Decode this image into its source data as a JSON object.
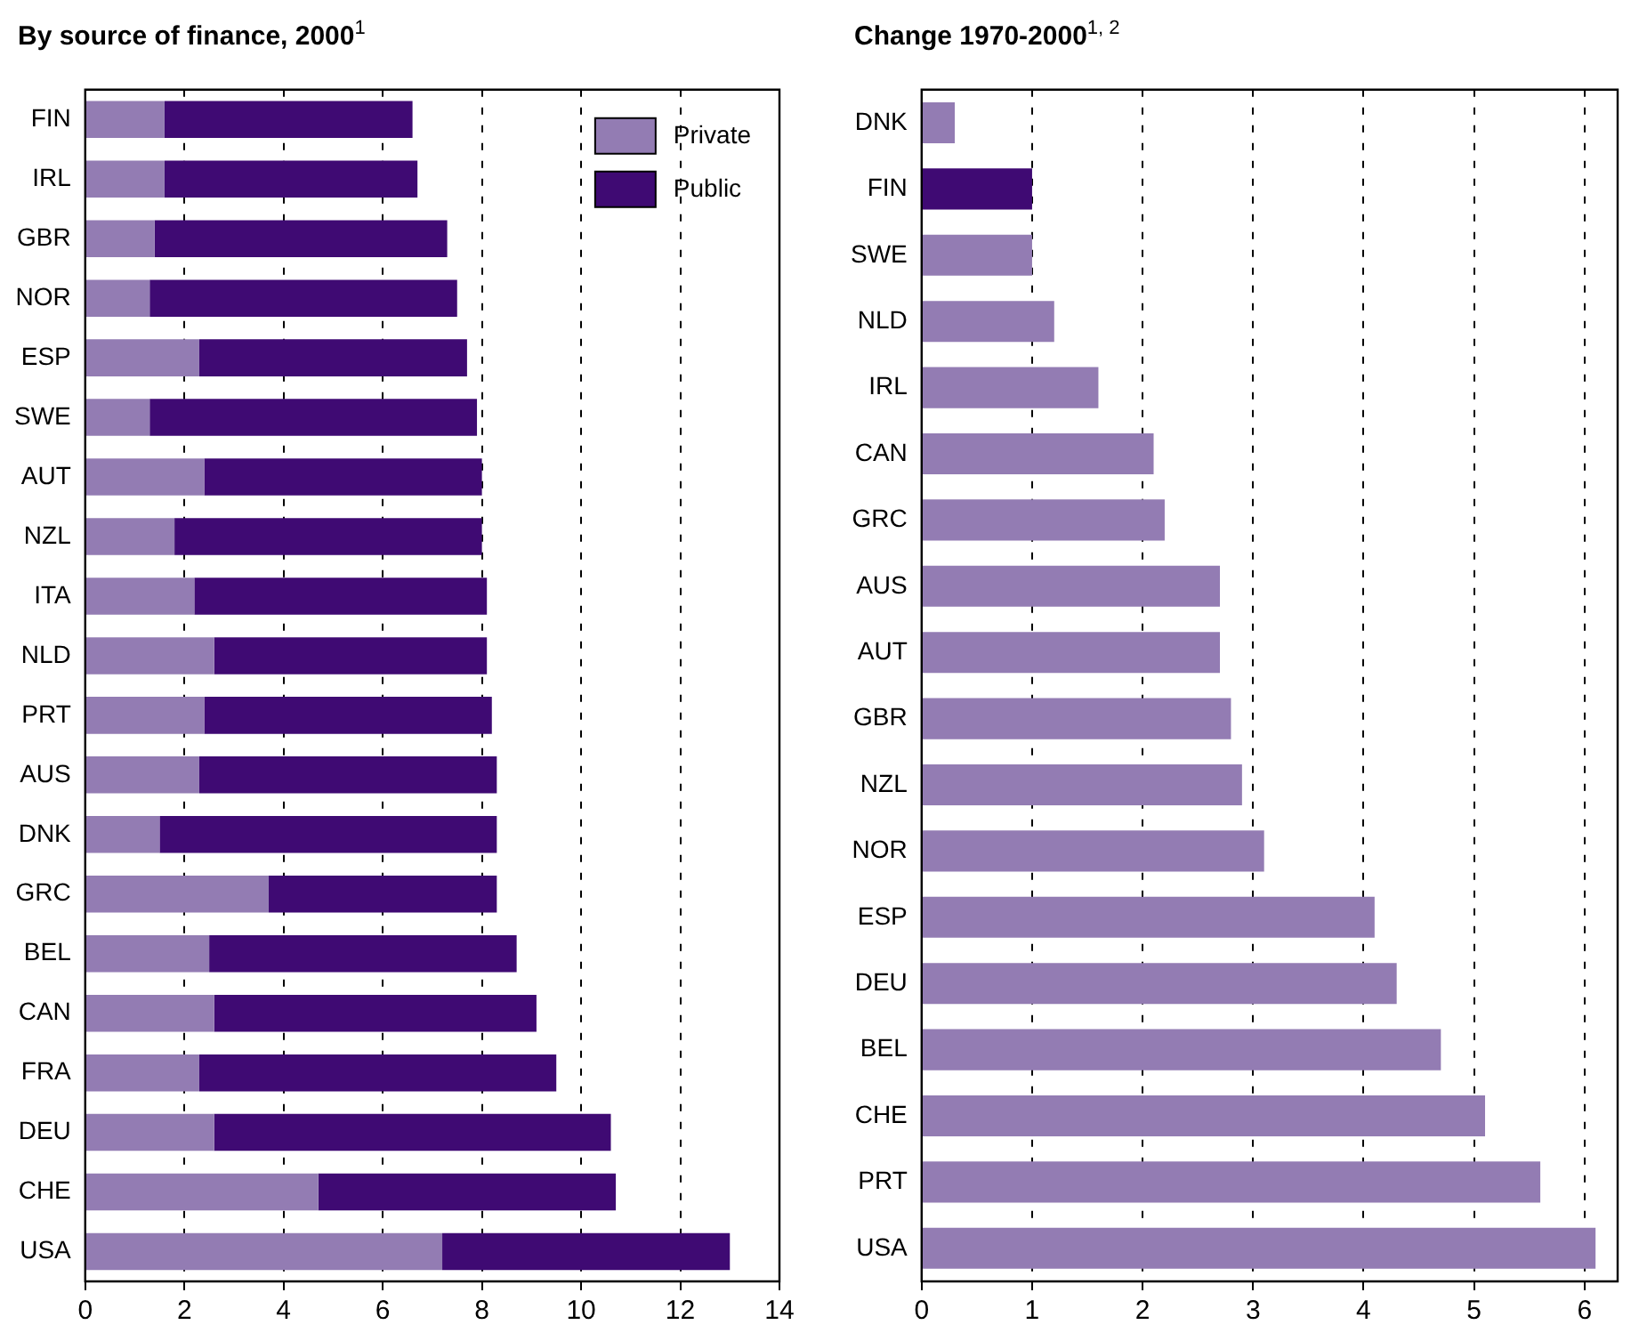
{
  "chart_data": [
    {
      "type": "bar",
      "title": "By source of finance, 2000$^{1}$",
      "orientation": "horizontal",
      "stacked": true,
      "categories": [
        "FIN",
        "IRL",
        "GBR",
        "NOR",
        "ESP",
        "SWE",
        "AUT",
        "NZL",
        "ITA",
        "NLD",
        "PRT",
        "AUS",
        "DNK",
        "GRC",
        "BEL",
        "CAN",
        "FRA",
        "DEU",
        "CHE",
        "USA"
      ],
      "series": [
        {
          "name": "Private",
          "color": "#937cb3",
          "values": [
            1.6,
            1.6,
            1.4,
            1.3,
            2.3,
            1.3,
            2.4,
            1.8,
            2.2,
            2.6,
            2.4,
            2.3,
            1.5,
            3.7,
            2.5,
            2.6,
            2.3,
            2.6,
            4.7,
            7.2
          ]
        },
        {
          "name": "Public",
          "color": "#3f0a73",
          "values": [
            5.0,
            5.1,
            5.9,
            6.2,
            5.4,
            6.6,
            5.6,
            6.2,
            5.9,
            5.5,
            5.8,
            6.0,
            6.8,
            4.6,
            6.2,
            6.5,
            7.2,
            8.0,
            6.0,
            5.8
          ]
        }
      ],
      "xlim": [
        0,
        14
      ],
      "xticks": [
        0,
        2,
        4,
        6,
        8,
        10,
        12,
        14
      ],
      "grid": "x",
      "legend": "top right"
    },
    {
      "type": "bar",
      "title": "Change 1970-2000$^{1, 2}$",
      "orientation": "horizontal",
      "categories": [
        "DNK",
        "FIN",
        "SWE",
        "NLD",
        "IRL",
        "CAN",
        "GRC",
        "AUS",
        "AUT",
        "GBR",
        "NZL",
        "NOR",
        "ESP",
        "DEU",
        "BEL",
        "CHE",
        "PRT",
        "USA"
      ],
      "values": [
        0.3,
        1.0,
        1.0,
        1.2,
        1.6,
        2.1,
        2.2,
        2.7,
        2.7,
        2.8,
        2.9,
        3.1,
        4.1,
        4.3,
        4.7,
        5.1,
        5.6,
        6.1
      ],
      "colors": [
        "#937cb3",
        "#3f0a73",
        "#937cb3",
        "#937cb3",
        "#937cb3",
        "#937cb3",
        "#937cb3",
        "#937cb3",
        "#937cb3",
        "#937cb3",
        "#937cb3",
        "#937cb3",
        "#937cb3",
        "#937cb3",
        "#937cb3",
        "#937cb3",
        "#937cb3",
        "#937cb3"
      ],
      "xlim": [
        0,
        6.3
      ],
      "xticks": [
        0,
        1,
        2,
        3,
        4,
        5,
        6
      ],
      "grid": "x"
    }
  ]
}
